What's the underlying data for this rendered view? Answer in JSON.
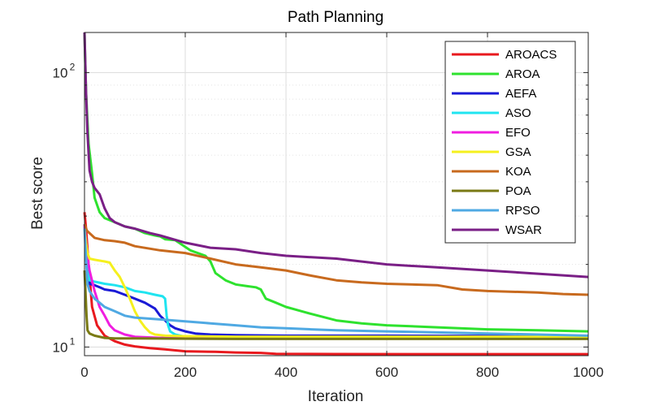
{
  "chart_data": {
    "type": "line",
    "title": "Path Planning",
    "xlabel": "Iteration",
    "ylabel": "Best score",
    "xlim": [
      0,
      1000
    ],
    "ylim": [
      9.3,
      140
    ],
    "yscale": "log",
    "grid": true,
    "legend_position": "top-right",
    "x_ticks": [
      0,
      200,
      400,
      600,
      800,
      1000
    ],
    "y_ticks": [
      {
        "value": 10,
        "base": "10",
        "exp": "1"
      },
      {
        "value": 100,
        "base": "10",
        "exp": "2"
      }
    ],
    "series": [
      {
        "name": "AROACS",
        "color": "#e8191e",
        "points": [
          [
            0,
            31
          ],
          [
            3,
            27
          ],
          [
            8,
            20
          ],
          [
            15,
            14
          ],
          [
            25,
            12
          ],
          [
            40,
            11
          ],
          [
            60,
            10.5
          ],
          [
            80,
            10.2
          ],
          [
            100,
            10.05
          ],
          [
            130,
            9.9
          ],
          [
            160,
            9.8
          ],
          [
            200,
            9.65
          ],
          [
            260,
            9.6
          ],
          [
            300,
            9.55
          ],
          [
            350,
            9.52
          ],
          [
            380,
            9.45
          ],
          [
            500,
            9.43
          ],
          [
            700,
            9.42
          ],
          [
            1000,
            9.42
          ]
        ]
      },
      {
        "name": "AROA",
        "color": "#2ee22e",
        "points": [
          [
            0,
            140
          ],
          [
            3,
            85
          ],
          [
            8,
            55
          ],
          [
            15,
            43
          ],
          [
            20,
            35
          ],
          [
            30,
            31
          ],
          [
            40,
            29.5
          ],
          [
            60,
            28.5
          ],
          [
            80,
            27.5
          ],
          [
            100,
            27
          ],
          [
            120,
            26
          ],
          [
            140,
            25.5
          ],
          [
            150,
            25.3
          ],
          [
            160,
            24.7
          ],
          [
            180,
            24.5
          ],
          [
            210,
            22.5
          ],
          [
            240,
            21.5
          ],
          [
            250,
            20.5
          ],
          [
            260,
            18.6
          ],
          [
            280,
            17.5
          ],
          [
            300,
            16.9
          ],
          [
            320,
            16.7
          ],
          [
            340,
            16.5
          ],
          [
            350,
            16.2
          ],
          [
            360,
            15
          ],
          [
            380,
            14.5
          ],
          [
            400,
            14
          ],
          [
            450,
            13.2
          ],
          [
            500,
            12.5
          ],
          [
            550,
            12.2
          ],
          [
            600,
            12
          ],
          [
            700,
            11.8
          ],
          [
            800,
            11.6
          ],
          [
            900,
            11.5
          ],
          [
            1000,
            11.4
          ]
        ]
      },
      {
        "name": "AEFA",
        "color": "#1a1ad6",
        "points": [
          [
            0,
            28
          ],
          [
            5,
            20
          ],
          [
            10,
            17
          ],
          [
            20,
            16.8
          ],
          [
            30,
            16.5
          ],
          [
            40,
            16.2
          ],
          [
            60,
            16
          ],
          [
            80,
            15.5
          ],
          [
            100,
            15
          ],
          [
            120,
            14.5
          ],
          [
            140,
            13.8
          ],
          [
            150,
            13
          ],
          [
            160,
            12.5
          ],
          [
            170,
            12
          ],
          [
            180,
            11.7
          ],
          [
            200,
            11.4
          ],
          [
            220,
            11.2
          ],
          [
            250,
            11.1
          ],
          [
            300,
            11.05
          ],
          [
            400,
            11
          ],
          [
            600,
            11
          ],
          [
            1000,
            10.95
          ]
        ]
      },
      {
        "name": "ASO",
        "color": "#1fe4f0",
        "points": [
          [
            0,
            28
          ],
          [
            5,
            19
          ],
          [
            10,
            17.5
          ],
          [
            20,
            17.3
          ],
          [
            40,
            17
          ],
          [
            60,
            16.8
          ],
          [
            80,
            16.5
          ],
          [
            100,
            16
          ],
          [
            120,
            15.8
          ],
          [
            140,
            15.5
          ],
          [
            155,
            15.3
          ],
          [
            160,
            15
          ],
          [
            163,
            13
          ],
          [
            166,
            12
          ],
          [
            170,
            11.4
          ],
          [
            180,
            11.1
          ],
          [
            200,
            10.9
          ],
          [
            300,
            10.85
          ],
          [
            500,
            10.8
          ],
          [
            1000,
            10.8
          ]
        ]
      },
      {
        "name": "EFO",
        "color": "#f01ee0",
        "points": [
          [
            0,
            28
          ],
          [
            5,
            22
          ],
          [
            10,
            19
          ],
          [
            20,
            16
          ],
          [
            30,
            14
          ],
          [
            40,
            13
          ],
          [
            50,
            12
          ],
          [
            60,
            11.5
          ],
          [
            80,
            11.1
          ],
          [
            100,
            10.9
          ],
          [
            150,
            10.8
          ],
          [
            300,
            10.8
          ],
          [
            1000,
            10.8
          ]
        ]
      },
      {
        "name": "GSA",
        "color": "#f5f01e",
        "points": [
          [
            0,
            27
          ],
          [
            3,
            24
          ],
          [
            6,
            22
          ],
          [
            10,
            21
          ],
          [
            20,
            20.8
          ],
          [
            40,
            20.5
          ],
          [
            50,
            20.3
          ],
          [
            60,
            19
          ],
          [
            70,
            18
          ],
          [
            80,
            16.5
          ],
          [
            90,
            15
          ],
          [
            100,
            13.5
          ],
          [
            110,
            12.5
          ],
          [
            120,
            11.8
          ],
          [
            130,
            11.3
          ],
          [
            140,
            11.1
          ],
          [
            160,
            11
          ],
          [
            200,
            10.95
          ],
          [
            300,
            10.9
          ],
          [
            600,
            10.9
          ],
          [
            1000,
            10.9
          ]
        ]
      },
      {
        "name": "KOA",
        "color": "#c86a1e",
        "points": [
          [
            0,
            28
          ],
          [
            5,
            26.5
          ],
          [
            10,
            26
          ],
          [
            20,
            25
          ],
          [
            40,
            24.5
          ],
          [
            60,
            24.3
          ],
          [
            80,
            24
          ],
          [
            100,
            23.3
          ],
          [
            150,
            22.5
          ],
          [
            200,
            22
          ],
          [
            250,
            21
          ],
          [
            300,
            20
          ],
          [
            350,
            19.5
          ],
          [
            400,
            19
          ],
          [
            450,
            18.2
          ],
          [
            500,
            17.5
          ],
          [
            550,
            17.2
          ],
          [
            600,
            17
          ],
          [
            700,
            16.8
          ],
          [
            750,
            16.2
          ],
          [
            800,
            16
          ],
          [
            900,
            15.8
          ],
          [
            950,
            15.6
          ],
          [
            1000,
            15.5
          ]
        ]
      },
      {
        "name": "POA",
        "color": "#7a7a14",
        "points": [
          [
            0,
            19
          ],
          [
            2,
            16
          ],
          [
            4,
            13
          ],
          [
            6,
            11.5
          ],
          [
            10,
            11.2
          ],
          [
            20,
            11
          ],
          [
            40,
            10.8
          ],
          [
            60,
            10.75
          ],
          [
            100,
            10.75
          ],
          [
            300,
            10.7
          ],
          [
            600,
            10.7
          ],
          [
            1000,
            10.7
          ]
        ]
      },
      {
        "name": "RPSO",
        "color": "#4fa9e3",
        "points": [
          [
            0,
            27
          ],
          [
            3,
            21
          ],
          [
            6,
            17
          ],
          [
            10,
            16
          ],
          [
            20,
            15
          ],
          [
            30,
            14.5
          ],
          [
            40,
            14
          ],
          [
            60,
            13.5
          ],
          [
            80,
            13
          ],
          [
            100,
            12.8
          ],
          [
            150,
            12.6
          ],
          [
            200,
            12.4
          ],
          [
            250,
            12.2
          ],
          [
            300,
            12
          ],
          [
            350,
            11.8
          ],
          [
            400,
            11.7
          ],
          [
            450,
            11.6
          ],
          [
            500,
            11.5
          ],
          [
            600,
            11.4
          ],
          [
            700,
            11.3
          ],
          [
            800,
            11.2
          ],
          [
            900,
            11.1
          ],
          [
            1000,
            11
          ]
        ]
      },
      {
        "name": "WSAR",
        "color": "#7a1f86",
        "points": [
          [
            0,
            140
          ],
          [
            3,
            85
          ],
          [
            6,
            60
          ],
          [
            10,
            44
          ],
          [
            15,
            40
          ],
          [
            20,
            38
          ],
          [
            30,
            36
          ],
          [
            40,
            32
          ],
          [
            50,
            29.5
          ],
          [
            60,
            28.5
          ],
          [
            80,
            27.5
          ],
          [
            100,
            27
          ],
          [
            130,
            26
          ],
          [
            150,
            25.5
          ],
          [
            200,
            24
          ],
          [
            250,
            23
          ],
          [
            300,
            22.7
          ],
          [
            350,
            22
          ],
          [
            400,
            21.5
          ],
          [
            500,
            21
          ],
          [
            600,
            20
          ],
          [
            700,
            19.5
          ],
          [
            800,
            19
          ],
          [
            900,
            18.5
          ],
          [
            1000,
            18
          ]
        ]
      }
    ]
  }
}
